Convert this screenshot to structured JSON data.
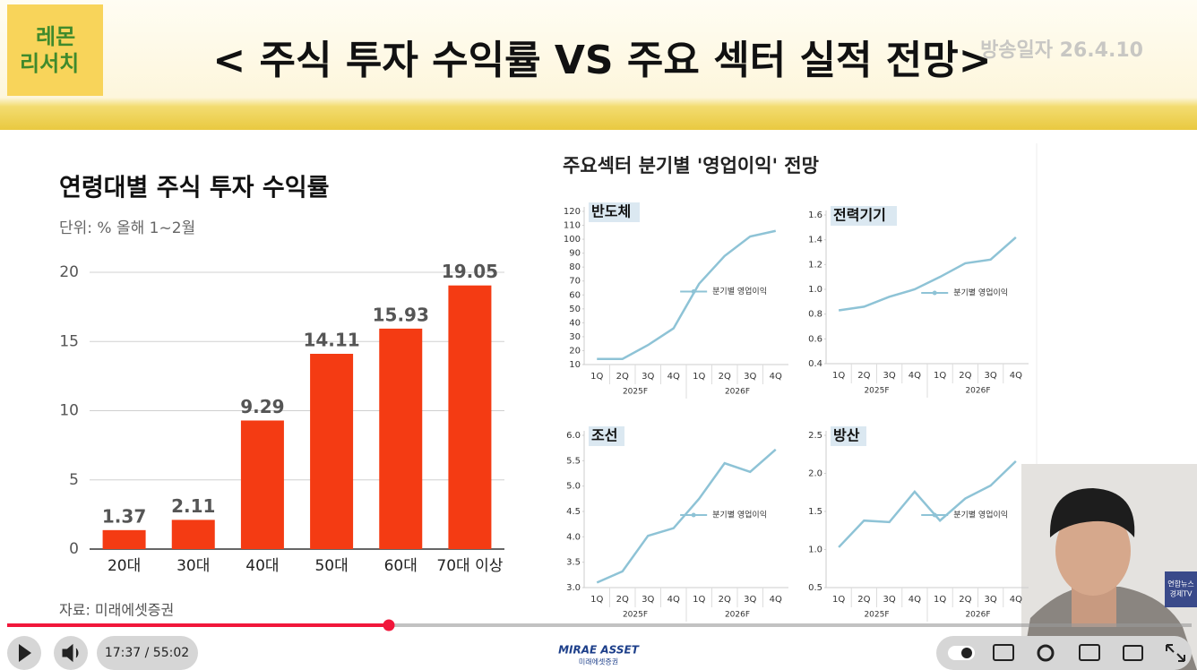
{
  "header": {
    "badge": [
      "레몬",
      "리서치"
    ],
    "title": "< 주식 투자 수익률 VS 주요 섹터 실적 전망>",
    "broadcast_date": "방송일자 26.4.10"
  },
  "bar_chart": {
    "type": "bar",
    "title": "연령대별 주식 투자 수익률",
    "subtitle": "단위: %  올해 1~2월",
    "categories": [
      "20대",
      "30대",
      "40대",
      "50대",
      "60대",
      "70대 이상"
    ],
    "values": [
      1.37,
      2.11,
      9.29,
      14.11,
      15.93,
      19.05
    ],
    "color": "#f43b13",
    "ylim": [
      0,
      20
    ],
    "yticks": [
      0,
      5,
      10,
      15,
      20
    ],
    "grid": true,
    "source": "자료: 미래에셋증권"
  },
  "line_charts": {
    "title": "주요섹터 분기별 '영업이익' 전망",
    "panels": [
      {
        "type": "line",
        "title": "반도체",
        "categories": [
          "1Q",
          "2Q",
          "3Q",
          "4Q",
          "1Q",
          "2Q",
          "3Q",
          "4Q"
        ],
        "groups": [
          "2025F",
          "2026F"
        ],
        "series": [
          {
            "name": "분기별 영업이익",
            "color": "#8ec3d6",
            "values": [
              14,
              14,
              24,
              36,
              68,
              88,
              102,
              106
            ]
          }
        ],
        "ylim": [
          10,
          120
        ],
        "yticks": [
          10,
          20,
          30,
          40,
          50,
          60,
          70,
          80,
          90,
          100,
          110,
          120
        ]
      },
      {
        "type": "line",
        "title": "전력기기",
        "categories": [
          "1Q",
          "2Q",
          "3Q",
          "4Q",
          "1Q",
          "2Q",
          "3Q",
          "4Q"
        ],
        "groups": [
          "2025F",
          "2026F"
        ],
        "series": [
          {
            "name": "분기별 영업이익",
            "color": "#8ec3d6",
            "values": [
              0.83,
              0.86,
              0.94,
              1.0,
              1.1,
              1.21,
              1.24,
              1.42
            ]
          }
        ],
        "ylim": [
          0.4,
          1.6
        ],
        "yticks": [
          0.4,
          0.6,
          0.8,
          {
            "value": 1,
            "label": "1.0"
          },
          1.2,
          1.4,
          1.6
        ]
      },
      {
        "type": "line",
        "title": "조선",
        "categories": [
          "1Q",
          "2Q",
          "3Q",
          "4Q",
          "1Q",
          "2Q",
          "3Q",
          "4Q"
        ],
        "groups": [
          "2025F",
          "2026F"
        ],
        "series": [
          {
            "name": "분기별 영업이익",
            "color": "#8ec3d6",
            "values": [
              3.1,
              3.32,
              4.02,
              4.17,
              4.75,
              5.45,
              5.28,
              5.72
            ]
          }
        ],
        "ylim": [
          3,
          6
        ],
        "yticks": [
          {
            "value": 3,
            "label": "3.0"
          },
          3.5,
          {
            "value": 4,
            "label": "4.0"
          },
          4.5,
          {
            "value": 5,
            "label": "5.0"
          },
          5.5,
          {
            "value": 6,
            "label": "6.0"
          }
        ]
      },
      {
        "type": "line",
        "title": "방산",
        "categories": [
          "1Q",
          "2Q",
          "3Q",
          "4Q",
          "1Q",
          "2Q",
          "3Q",
          "4Q"
        ],
        "groups": [
          "2025F",
          "2026F"
        ],
        "series": [
          {
            "name": "분기별 영업이익",
            "color": "#8ec3d6",
            "values": [
              1.03,
              1.38,
              1.36,
              1.76,
              1.38,
              1.67,
              1.84,
              2.16
            ]
          }
        ],
        "ylim": [
          0.5,
          2.5
        ],
        "yticks": [
          0.5,
          {
            "value": 1,
            "label": "1.0"
          },
          1.5,
          {
            "value": 2,
            "label": "2.0"
          },
          2.5
        ]
      }
    ]
  },
  "player": {
    "time": "17:37 / 55:02",
    "logo": "MIRAE ASSET",
    "logo_sub": "미래에셋증권",
    "channel_badge": [
      "연합뉴스",
      "경제TV"
    ]
  }
}
